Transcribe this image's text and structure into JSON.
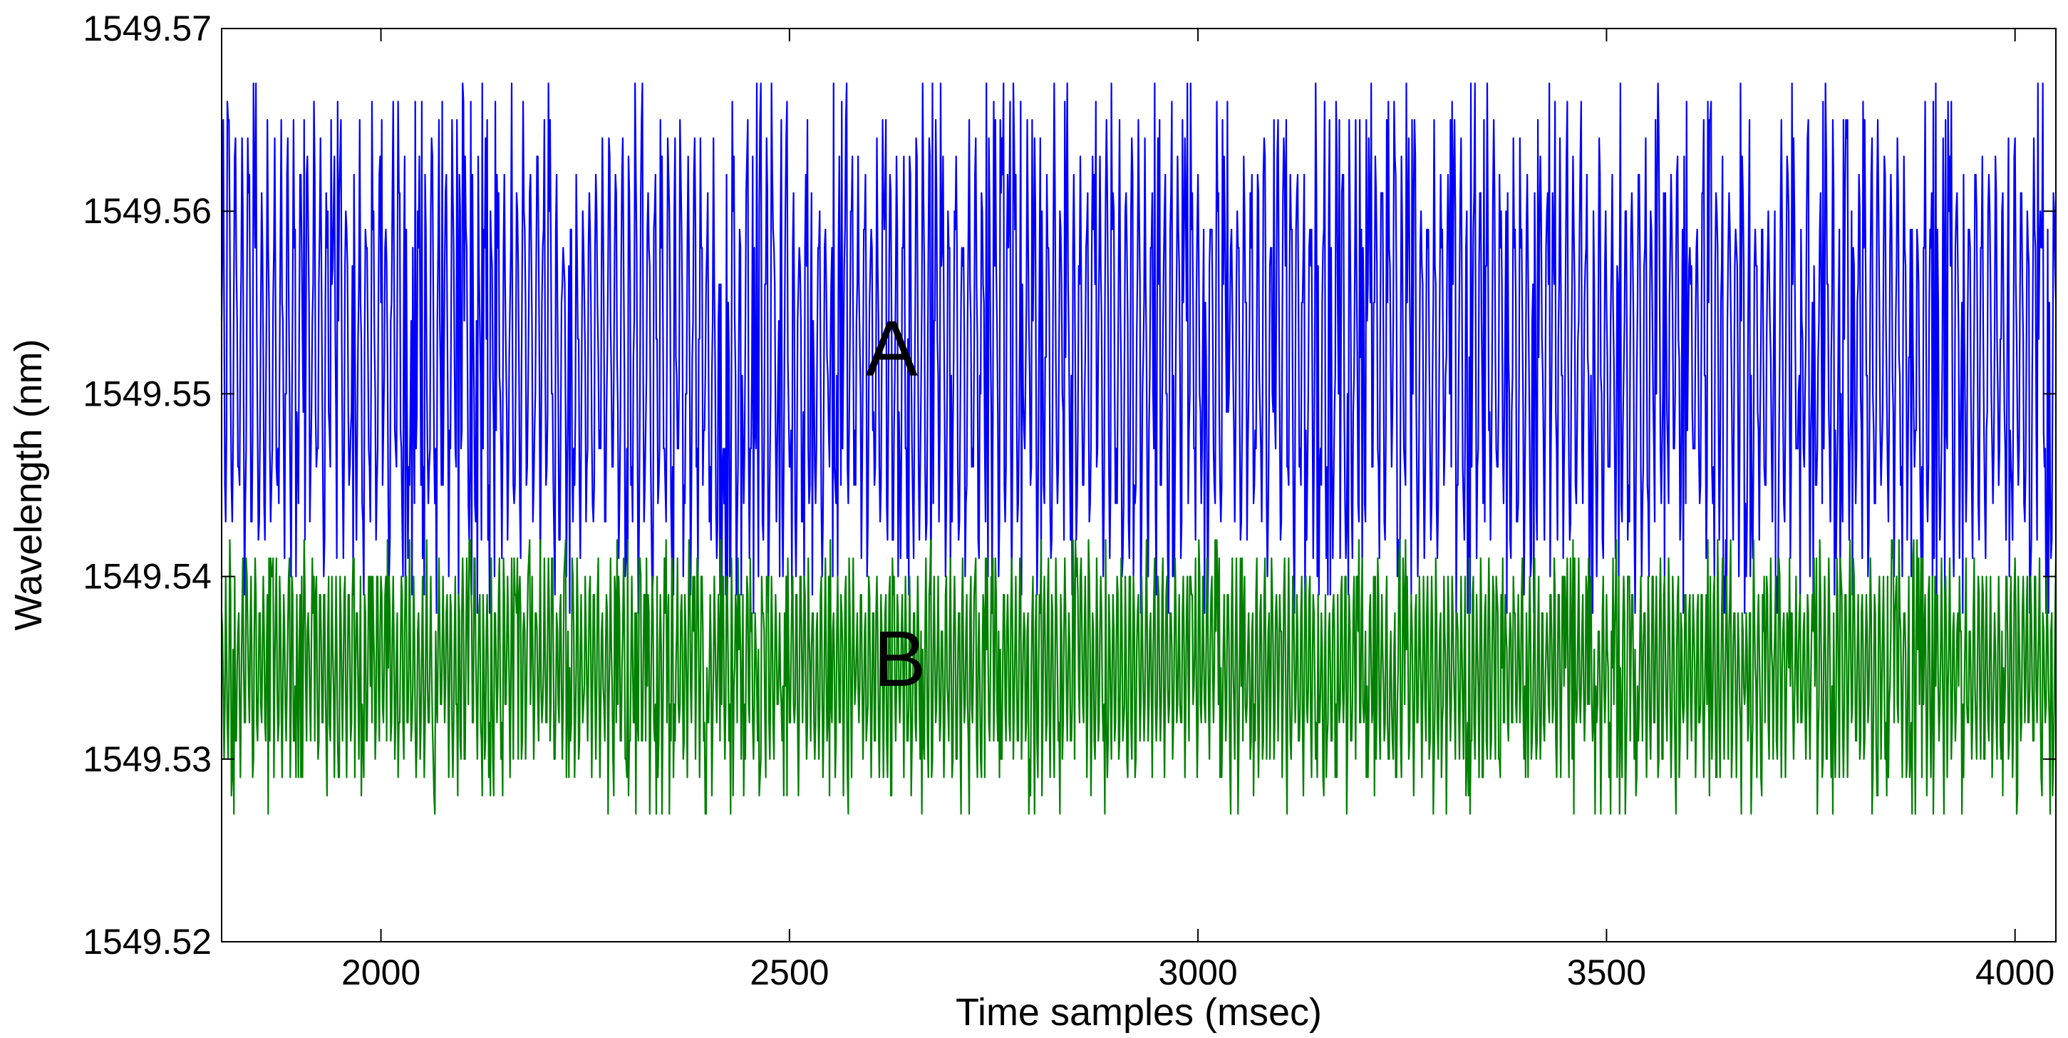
{
  "chart_data": {
    "type": "line",
    "title": "",
    "xlabel": "Time samples (msec)",
    "ylabel": "Wavelength (nm)",
    "xlim": [
      1805,
      4050
    ],
    "ylim": [
      1549.52,
      1549.57
    ],
    "xticks": [
      2000,
      2500,
      3000,
      3500,
      4000
    ],
    "xtick_labels": [
      "2000",
      "2500",
      "3000",
      "3500",
      "4000"
    ],
    "yticks": [
      1549.52,
      1549.53,
      1549.54,
      1549.55,
      1549.56,
      1549.57
    ],
    "ytick_labels": [
      "1549.52",
      "1549.53",
      "1549.54",
      "1549.55",
      "1549.56",
      "1549.57"
    ],
    "grid": false,
    "legend": "none",
    "series": [
      {
        "name": "A",
        "color": "#0000ff",
        "x_range": [
          1805,
          4050
        ],
        "mean": 1549.5525,
        "min": 1549.538,
        "max": 1549.567,
        "oscillation_period_samples": 8,
        "description": "high-frequency quantized oscillation between about 1549.538 and 1549.567 nm"
      },
      {
        "name": "B",
        "color": "#008000",
        "x_range": [
          1805,
          4050
        ],
        "mean": 1549.535,
        "min": 1549.527,
        "max": 1549.542,
        "oscillation_period_samples": 5,
        "description": "noisier oscillation between about 1549.527 and 1549.542 nm"
      }
    ],
    "annotations": [
      {
        "text": "A",
        "x": 2625,
        "y": 1549.5525
      },
      {
        "text": "B",
        "x": 2635,
        "y": 1549.5355
      }
    ]
  }
}
